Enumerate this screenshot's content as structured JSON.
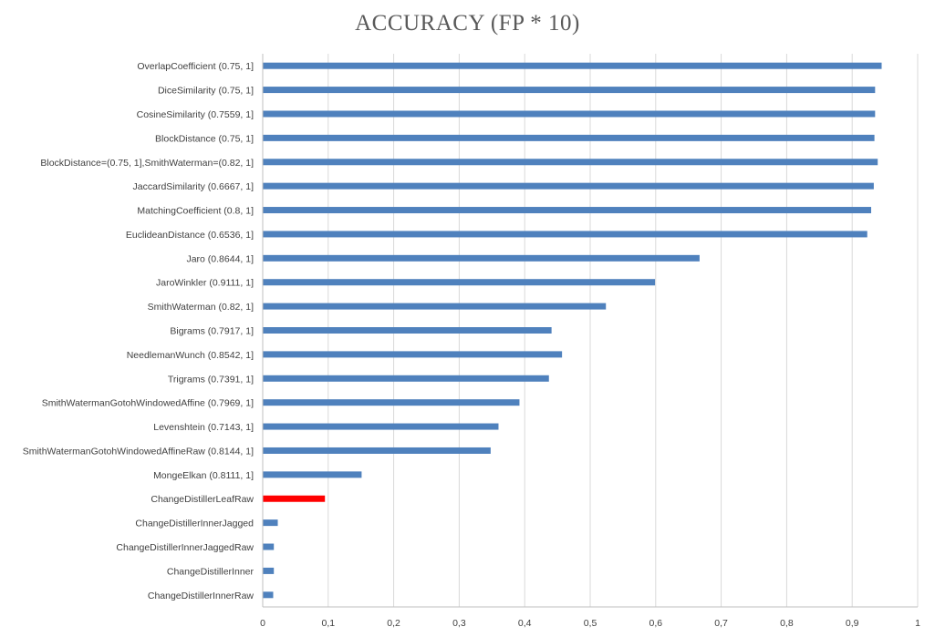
{
  "chart_data": {
    "type": "bar",
    "orientation": "horizontal",
    "title": "ACCURACY (FP * 10)",
    "xlabel": "",
    "ylabel": "",
    "xlim": [
      0,
      1
    ],
    "x_ticks": [
      "0",
      "0,1",
      "0,2",
      "0,3",
      "0,4",
      "0,5",
      "0,6",
      "0,7",
      "0,8",
      "0,9",
      "1"
    ],
    "grid": true,
    "legend": "none",
    "bar_color": "#4f81bd",
    "highlight_color": "#ff0000",
    "categories": [
      "OverlapCoefficient (0.75, 1]",
      "DiceSimilarity (0.75, 1]",
      "CosineSimilarity (0.7559, 1]",
      "BlockDistance (0.75, 1]",
      "BlockDistance=(0.75, 1],SmithWaterman=(0.82, 1]",
      "JaccardSimilarity (0.6667, 1]",
      "MatchingCoefficient (0.8, 1]",
      "EuclideanDistance (0.6536, 1]",
      "Jaro (0.8644, 1]",
      "JaroWinkler (0.9111, 1]",
      "SmithWaterman (0.82, 1]",
      "Bigrams (0.7917, 1]",
      "NeedlemanWunch (0.8542, 1]",
      "Trigrams (0.7391, 1]",
      "SmithWatermanGotohWindowedAffine (0.7969, 1]",
      "Levenshtein (0.7143, 1]",
      "SmithWatermanGotohWindowedAffineRaw (0.8144, 1]",
      "MongeElkan (0.8111, 1]",
      "ChangeDistillerLeafRaw",
      "ChangeDistillerInnerJagged",
      "ChangeDistillerInnerJaggedRaw",
      "ChangeDistillerInner",
      "ChangeDistillerInnerRaw"
    ],
    "values": [
      0.945,
      0.935,
      0.935,
      0.934,
      0.939,
      0.933,
      0.929,
      0.923,
      0.667,
      0.599,
      0.524,
      0.441,
      0.457,
      0.437,
      0.392,
      0.36,
      0.348,
      0.151,
      0.095,
      0.023,
      0.017,
      0.017,
      0.016
    ],
    "highlighted": [
      "ChangeDistillerLeafRaw"
    ]
  }
}
